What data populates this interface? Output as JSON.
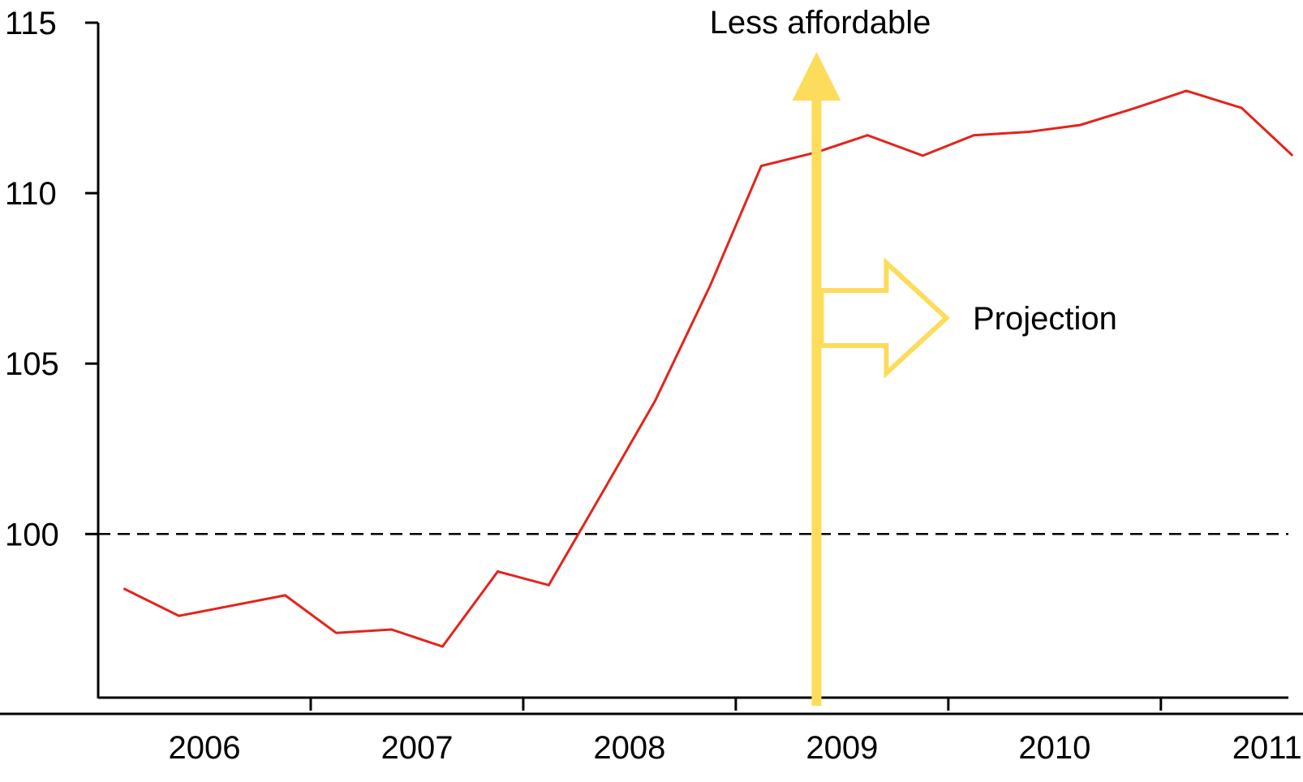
{
  "chart_data": {
    "type": "line",
    "title": "",
    "xlabel": "",
    "ylabel": "",
    "xlim": [
      2006.0,
      2011.6
    ],
    "ylim": [
      95.2,
      115
    ],
    "yticks": [
      115,
      110,
      105,
      100
    ],
    "xticks": [
      "2006",
      "2007",
      "2008",
      "2009",
      "2010",
      "2011"
    ],
    "grid": false,
    "legend": "none",
    "reference_line": {
      "y": 100,
      "style": "dashed",
      "color": "#000000"
    },
    "series": [
      {
        "color": "#e3241b",
        "points": [
          {
            "x": 2006.12,
            "y": 98.4
          },
          {
            "x": 2006.38,
            "y": 97.6
          },
          {
            "x": 2006.88,
            "y": 98.2
          },
          {
            "x": 2007.12,
            "y": 97.1
          },
          {
            "x": 2007.38,
            "y": 97.2
          },
          {
            "x": 2007.62,
            "y": 96.7
          },
          {
            "x": 2007.88,
            "y": 98.9
          },
          {
            "x": 2008.12,
            "y": 98.5
          },
          {
            "x": 2008.38,
            "y": 101.3
          },
          {
            "x": 2008.62,
            "y": 103.9
          },
          {
            "x": 2008.88,
            "y": 107.3
          },
          {
            "x": 2009.12,
            "y": 110.8
          },
          {
            "x": 2009.38,
            "y": 111.2
          },
          {
            "x": 2009.62,
            "y": 111.7
          },
          {
            "x": 2009.88,
            "y": 111.1
          },
          {
            "x": 2010.12,
            "y": 111.7
          },
          {
            "x": 2010.38,
            "y": 111.8
          },
          {
            "x": 2010.62,
            "y": 112.0
          },
          {
            "x": 2010.88,
            "y": 112.5
          },
          {
            "x": 2011.12,
            "y": 113.0
          },
          {
            "x": 2011.38,
            "y": 112.5
          },
          {
            "x": 2011.62,
            "y": 111.1
          }
        ]
      }
    ],
    "annotations": {
      "less_affordable": {
        "text": "Less affordable",
        "color": "#fddc5c",
        "at_x": 2009.38
      },
      "projection": {
        "text": "Projection",
        "color": "#fddc5c"
      }
    }
  }
}
